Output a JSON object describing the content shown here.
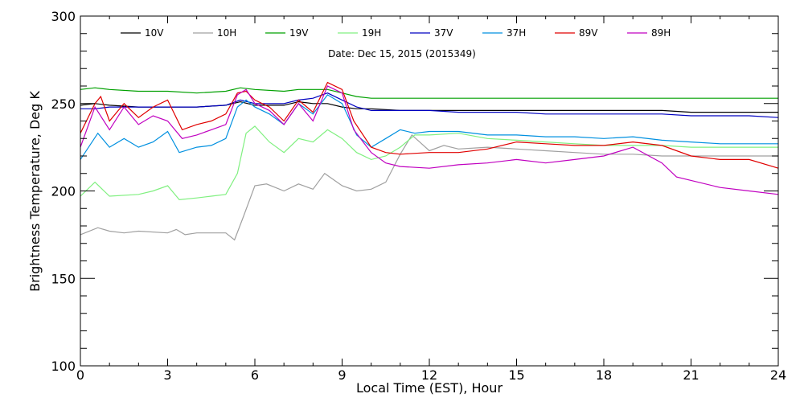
{
  "chart_data": {
    "type": "line",
    "annotation": "Date: Dec 15, 2015 (2015349)",
    "xlabel": "Local Time (EST), Hour",
    "ylabel": "Brightness Temperature, Deg K",
    "xlim": [
      0,
      24
    ],
    "ylim": [
      100,
      300
    ],
    "x_ticks": [
      0,
      3,
      6,
      9,
      12,
      15,
      18,
      21,
      24
    ],
    "y_ticks": [
      100,
      150,
      200,
      250,
      300
    ],
    "grid": false,
    "legend_position": "top",
    "series": [
      {
        "name": "10V",
        "color": "#000000",
        "points": [
          [
            0,
            249
          ],
          [
            0.5,
            250
          ],
          [
            1,
            249
          ],
          [
            2,
            248
          ],
          [
            3,
            248
          ],
          [
            4,
            248
          ],
          [
            5,
            249
          ],
          [
            5.5,
            251
          ],
          [
            6,
            249
          ],
          [
            7,
            249
          ],
          [
            7.5,
            251
          ],
          [
            8,
            250
          ],
          [
            8.5,
            250
          ],
          [
            9,
            248
          ],
          [
            9.5,
            247
          ],
          [
            10,
            247
          ],
          [
            11,
            246
          ],
          [
            12,
            246
          ],
          [
            13,
            246
          ],
          [
            14,
            246
          ],
          [
            15,
            246
          ],
          [
            16,
            246
          ],
          [
            17,
            246
          ],
          [
            18,
            246
          ],
          [
            19,
            246
          ],
          [
            20,
            246
          ],
          [
            21,
            245
          ],
          [
            22,
            245
          ],
          [
            23,
            245
          ],
          [
            24,
            245
          ]
        ]
      },
      {
        "name": "10H",
        "color": "#a0a0a0",
        "points": [
          [
            0,
            175
          ],
          [
            0.6,
            179
          ],
          [
            1,
            177
          ],
          [
            1.5,
            176
          ],
          [
            2,
            177
          ],
          [
            3,
            176
          ],
          [
            3.3,
            178
          ],
          [
            3.6,
            175
          ],
          [
            4,
            176
          ],
          [
            5,
            176
          ],
          [
            5.3,
            172
          ],
          [
            5.6,
            185
          ],
          [
            6,
            203
          ],
          [
            6.4,
            204
          ],
          [
            7,
            200
          ],
          [
            7.5,
            204
          ],
          [
            8,
            201
          ],
          [
            8.4,
            210
          ],
          [
            9,
            203
          ],
          [
            9.5,
            200
          ],
          [
            10,
            201
          ],
          [
            10.5,
            205
          ],
          [
            11,
            221
          ],
          [
            11.4,
            232
          ],
          [
            11.8,
            226
          ],
          [
            12,
            223
          ],
          [
            12.5,
            226
          ],
          [
            13,
            224
          ],
          [
            14,
            225
          ],
          [
            15,
            224
          ],
          [
            16,
            223
          ],
          [
            17,
            222
          ],
          [
            18,
            221
          ],
          [
            19,
            221
          ],
          [
            20,
            220
          ],
          [
            21,
            220
          ],
          [
            22,
            220
          ],
          [
            23,
            220
          ],
          [
            24,
            220
          ]
        ]
      },
      {
        "name": "19V",
        "color": "#00a000",
        "points": [
          [
            0,
            258
          ],
          [
            0.5,
            259
          ],
          [
            1,
            258
          ],
          [
            2,
            257
          ],
          [
            3,
            257
          ],
          [
            4,
            256
          ],
          [
            5,
            257
          ],
          [
            5.5,
            259
          ],
          [
            6,
            258
          ],
          [
            7,
            257
          ],
          [
            7.5,
            258
          ],
          [
            8,
            258
          ],
          [
            8.5,
            258
          ],
          [
            9,
            256
          ],
          [
            9.5,
            254
          ],
          [
            10,
            253
          ],
          [
            11,
            253
          ],
          [
            12,
            253
          ],
          [
            13,
            253
          ],
          [
            14,
            253
          ],
          [
            15,
            253
          ],
          [
            16,
            253
          ],
          [
            17,
            253
          ],
          [
            18,
            253
          ],
          [
            19,
            253
          ],
          [
            20,
            253
          ],
          [
            21,
            253
          ],
          [
            22,
            253
          ],
          [
            23,
            253
          ],
          [
            24,
            253
          ]
        ]
      },
      {
        "name": "19H",
        "color": "#80f080",
        "points": [
          [
            0,
            197
          ],
          [
            0.5,
            205
          ],
          [
            1,
            197
          ],
          [
            2,
            198
          ],
          [
            2.5,
            200
          ],
          [
            3,
            203
          ],
          [
            3.4,
            195
          ],
          [
            4,
            196
          ],
          [
            4.5,
            197
          ],
          [
            5,
            198
          ],
          [
            5.4,
            210
          ],
          [
            5.7,
            233
          ],
          [
            6,
            237
          ],
          [
            6.5,
            228
          ],
          [
            7,
            222
          ],
          [
            7.5,
            230
          ],
          [
            8,
            228
          ],
          [
            8.5,
            235
          ],
          [
            9,
            230
          ],
          [
            9.5,
            222
          ],
          [
            10,
            218
          ],
          [
            10.5,
            220
          ],
          [
            11,
            225
          ],
          [
            11.5,
            232
          ],
          [
            12,
            232
          ],
          [
            13,
            233
          ],
          [
            14,
            230
          ],
          [
            15,
            229
          ],
          [
            16,
            228
          ],
          [
            17,
            227
          ],
          [
            18,
            226
          ],
          [
            19,
            226
          ],
          [
            20,
            226
          ],
          [
            21,
            225
          ],
          [
            22,
            225
          ],
          [
            23,
            225
          ],
          [
            24,
            225
          ]
        ]
      },
      {
        "name": "37V",
        "color": "#0000c0",
        "points": [
          [
            0,
            247
          ],
          [
            0.5,
            247
          ],
          [
            1,
            248
          ],
          [
            2,
            248
          ],
          [
            3,
            248
          ],
          [
            4,
            248
          ],
          [
            5,
            249
          ],
          [
            5.5,
            252
          ],
          [
            6,
            250
          ],
          [
            7,
            250
          ],
          [
            7.5,
            252
          ],
          [
            8,
            253
          ],
          [
            8.5,
            256
          ],
          [
            9,
            252
          ],
          [
            9.5,
            248
          ],
          [
            10,
            246
          ],
          [
            11,
            246
          ],
          [
            12,
            246
          ],
          [
            13,
            245
          ],
          [
            14,
            245
          ],
          [
            15,
            245
          ],
          [
            16,
            244
          ],
          [
            17,
            244
          ],
          [
            18,
            244
          ],
          [
            19,
            244
          ],
          [
            20,
            244
          ],
          [
            21,
            243
          ],
          [
            22,
            243
          ],
          [
            23,
            243
          ],
          [
            24,
            242
          ]
        ]
      },
      {
        "name": "37H",
        "color": "#0090e0",
        "points": [
          [
            0,
            218
          ],
          [
            0.6,
            233
          ],
          [
            1,
            225
          ],
          [
            1.5,
            230
          ],
          [
            2,
            225
          ],
          [
            2.5,
            228
          ],
          [
            3,
            234
          ],
          [
            3.4,
            222
          ],
          [
            4,
            225
          ],
          [
            4.5,
            226
          ],
          [
            5,
            230
          ],
          [
            5.4,
            248
          ],
          [
            5.7,
            252
          ],
          [
            6,
            248
          ],
          [
            6.5,
            244
          ],
          [
            7,
            238
          ],
          [
            7.5,
            250
          ],
          [
            8,
            244
          ],
          [
            8.5,
            255
          ],
          [
            9,
            250
          ],
          [
            9.5,
            232
          ],
          [
            10,
            225
          ],
          [
            10.5,
            230
          ],
          [
            11,
            235
          ],
          [
            11.5,
            233
          ],
          [
            12,
            234
          ],
          [
            13,
            234
          ],
          [
            14,
            232
          ],
          [
            15,
            232
          ],
          [
            16,
            231
          ],
          [
            17,
            231
          ],
          [
            18,
            230
          ],
          [
            19,
            231
          ],
          [
            20,
            229
          ],
          [
            21,
            228
          ],
          [
            22,
            227
          ],
          [
            23,
            227
          ],
          [
            24,
            227
          ]
        ]
      },
      {
        "name": "89V",
        "color": "#e00000",
        "points": [
          [
            0,
            233
          ],
          [
            0.5,
            250
          ],
          [
            0.7,
            254
          ],
          [
            1,
            240
          ],
          [
            1.5,
            250
          ],
          [
            2,
            242
          ],
          [
            2.5,
            248
          ],
          [
            3,
            252
          ],
          [
            3.5,
            235
          ],
          [
            4,
            238
          ],
          [
            4.5,
            240
          ],
          [
            5,
            244
          ],
          [
            5.4,
            256
          ],
          [
            5.7,
            257
          ],
          [
            6,
            252
          ],
          [
            6.5,
            248
          ],
          [
            7,
            240
          ],
          [
            7.5,
            252
          ],
          [
            8,
            245
          ],
          [
            8.5,
            262
          ],
          [
            9,
            258
          ],
          [
            9.4,
            240
          ],
          [
            10,
            225
          ],
          [
            10.5,
            222
          ],
          [
            11,
            221
          ],
          [
            12,
            222
          ],
          [
            13,
            222
          ],
          [
            14,
            224
          ],
          [
            15,
            228
          ],
          [
            16,
            227
          ],
          [
            17,
            226
          ],
          [
            18,
            226
          ],
          [
            19,
            228
          ],
          [
            20,
            226
          ],
          [
            21,
            220
          ],
          [
            22,
            218
          ],
          [
            23,
            218
          ],
          [
            24,
            213
          ]
        ]
      },
      {
        "name": "89H",
        "color": "#c000c0",
        "points": [
          [
            0,
            225
          ],
          [
            0.5,
            248
          ],
          [
            1,
            235
          ],
          [
            1.5,
            248
          ],
          [
            2,
            238
          ],
          [
            2.5,
            243
          ],
          [
            3,
            240
          ],
          [
            3.5,
            230
          ],
          [
            4,
            232
          ],
          [
            4.5,
            235
          ],
          [
            5,
            238
          ],
          [
            5.4,
            255
          ],
          [
            5.7,
            258
          ],
          [
            6,
            250
          ],
          [
            6.5,
            246
          ],
          [
            7,
            238
          ],
          [
            7.5,
            250
          ],
          [
            8,
            240
          ],
          [
            8.5,
            260
          ],
          [
            9,
            256
          ],
          [
            9.4,
            235
          ],
          [
            10,
            222
          ],
          [
            10.5,
            216
          ],
          [
            11,
            214
          ],
          [
            12,
            213
          ],
          [
            13,
            215
          ],
          [
            14,
            216
          ],
          [
            15,
            218
          ],
          [
            16,
            216
          ],
          [
            17,
            218
          ],
          [
            18,
            220
          ],
          [
            19,
            225
          ],
          [
            20,
            216
          ],
          [
            20.5,
            208
          ],
          [
            21,
            206
          ],
          [
            22,
            202
          ],
          [
            23,
            200
          ],
          [
            24,
            198
          ]
        ]
      }
    ]
  }
}
